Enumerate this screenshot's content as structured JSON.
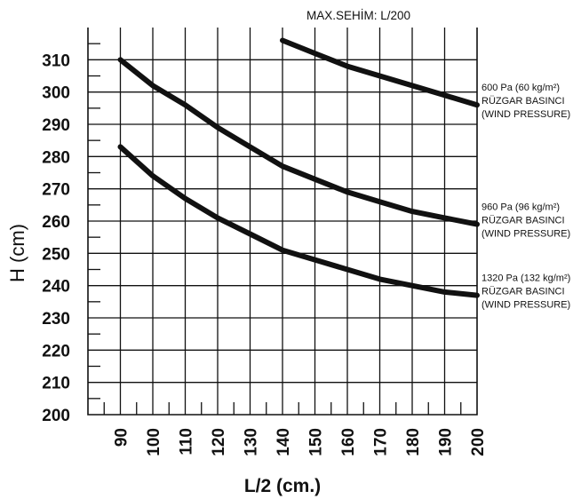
{
  "chart_data": {
    "type": "line",
    "title": "",
    "note": "MAX.SEHİM: L/200",
    "xlabel": "L/2  (cm.)",
    "ylabel": "H (cm)",
    "xlim": [
      80,
      200
    ],
    "ylim": [
      200,
      320
    ],
    "x_ticks": [
      "90",
      "100",
      "110",
      "120",
      "130",
      "140",
      "150",
      "160",
      "170",
      "180",
      "190",
      "200"
    ],
    "y_ticks": [
      "200",
      "210",
      "220",
      "230",
      "240",
      "250",
      "260",
      "270",
      "280",
      "290",
      "300",
      "310"
    ],
    "grid": true,
    "series": [
      {
        "name": "600 Pa",
        "labels": [
          "600 Pa (60 kg/m²)",
          "RÜZGAR BASINCI",
          "(WIND PRESSURE)"
        ],
        "x": [
          140,
          150,
          160,
          170,
          180,
          190,
          200
        ],
        "y": [
          316,
          312,
          308,
          305,
          302,
          299,
          296
        ]
      },
      {
        "name": "960 Pa",
        "labels": [
          "960 Pa (96 kg/m²)",
          "RÜZGAR BASINCI",
          "(WIND PRESSURE)"
        ],
        "x": [
          90,
          100,
          110,
          120,
          130,
          140,
          150,
          160,
          170,
          180,
          190,
          200
        ],
        "y": [
          310,
          302,
          296,
          289,
          283,
          277,
          273,
          269,
          266,
          263,
          261,
          259
        ]
      },
      {
        "name": "1320 Pa",
        "labels": [
          "1320 Pa (132 kg/m²)",
          "RÜZGAR BASINCI",
          "(WIND PRESSURE)"
        ],
        "x": [
          90,
          100,
          110,
          120,
          130,
          140,
          150,
          160,
          170,
          180,
          190,
          200
        ],
        "y": [
          283,
          274,
          267,
          261,
          256,
          251,
          248,
          245,
          242,
          240,
          238,
          237
        ]
      }
    ]
  }
}
